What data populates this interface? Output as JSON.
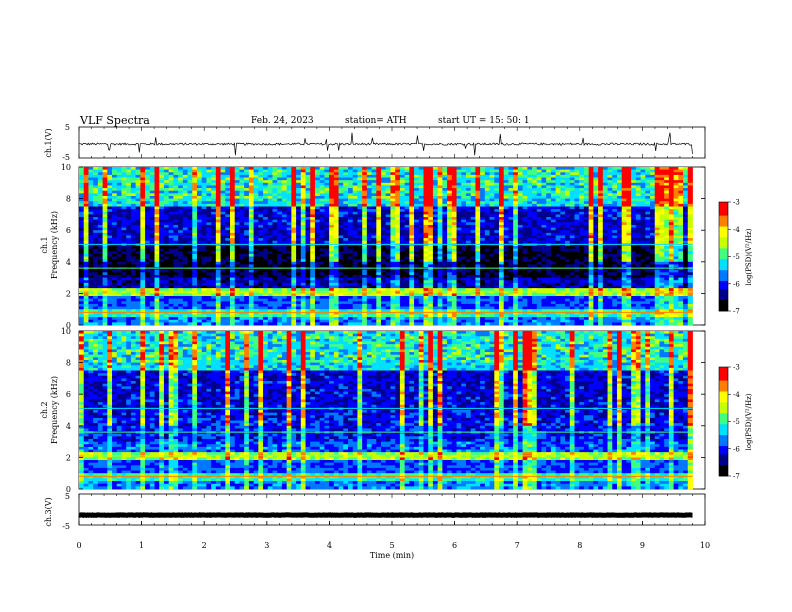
{
  "header": {
    "title": "VLF  Spectra",
    "date": "Feb. 24, 2023",
    "station": "station= ATH",
    "start_ut": "start  UT  =    15: 50: 1"
  },
  "colors": {
    "colormap": [
      "#000000",
      "#00008b",
      "#0000ff",
      "#0078ff",
      "#00e0ff",
      "#40ff80",
      "#c8ff00",
      "#ffff00",
      "#ff8000",
      "#ff0000",
      "#ffffff"
    ],
    "waveform": "#000000"
  },
  "chart_data": [
    {
      "type": "line",
      "name": "ch1-waveform",
      "ylabel": "ch.1(V)",
      "ylim": [
        -5,
        5
      ],
      "yticks": [
        "5",
        "-5"
      ],
      "xlim": [
        0,
        10
      ],
      "note_values": "noisy waveform roughly around -0.5 V with occasional spikes",
      "mean": -0.5,
      "amplitude": 0.7
    },
    {
      "type": "heatmap",
      "name": "ch1-spectrogram",
      "ylabel": "ch.1\nFrequency  (kHz)",
      "ylabel_lines": [
        "ch.1",
        "Frequency  (kHz)"
      ],
      "xlim": [
        0,
        9.8
      ],
      "ylim": [
        0,
        10
      ],
      "yticks": [
        "0",
        "2",
        "4",
        "6",
        "8",
        "10"
      ],
      "colorbar": {
        "label": "log(PSD)(V²/Hz)",
        "range": [
          -7,
          -3
        ],
        "ticks": [
          "-3",
          "-4",
          "-5",
          "-6",
          "-7"
        ]
      }
    },
    {
      "type": "heatmap",
      "name": "ch2-spectrogram",
      "ylabel_lines": [
        "ch.2",
        "Frequency  (kHz)"
      ],
      "xlim": [
        0,
        9.8
      ],
      "ylim": [
        0,
        10
      ],
      "yticks": [
        "0",
        "2",
        "4",
        "6",
        "8",
        "10"
      ],
      "colorbar": {
        "label": "log(PSD)(V²/Hz)",
        "range": [
          -7,
          -3
        ],
        "ticks": [
          "-3",
          "-4",
          "-5",
          "-6",
          "-7"
        ]
      }
    },
    {
      "type": "line",
      "name": "ch3-waveform",
      "ylabel": "ch.3(V)",
      "ylim": [
        -5,
        5
      ],
      "yticks": [
        "5",
        "-5"
      ],
      "xlim": [
        0,
        10
      ],
      "mean": -1.8,
      "amplitude": 0.15
    }
  ],
  "xaxis": {
    "label": "Time  (min)",
    "ticks": [
      "0",
      "1",
      "2",
      "3",
      "4",
      "5",
      "6",
      "7",
      "8",
      "9",
      "10"
    ],
    "range": [
      0,
      10
    ]
  }
}
